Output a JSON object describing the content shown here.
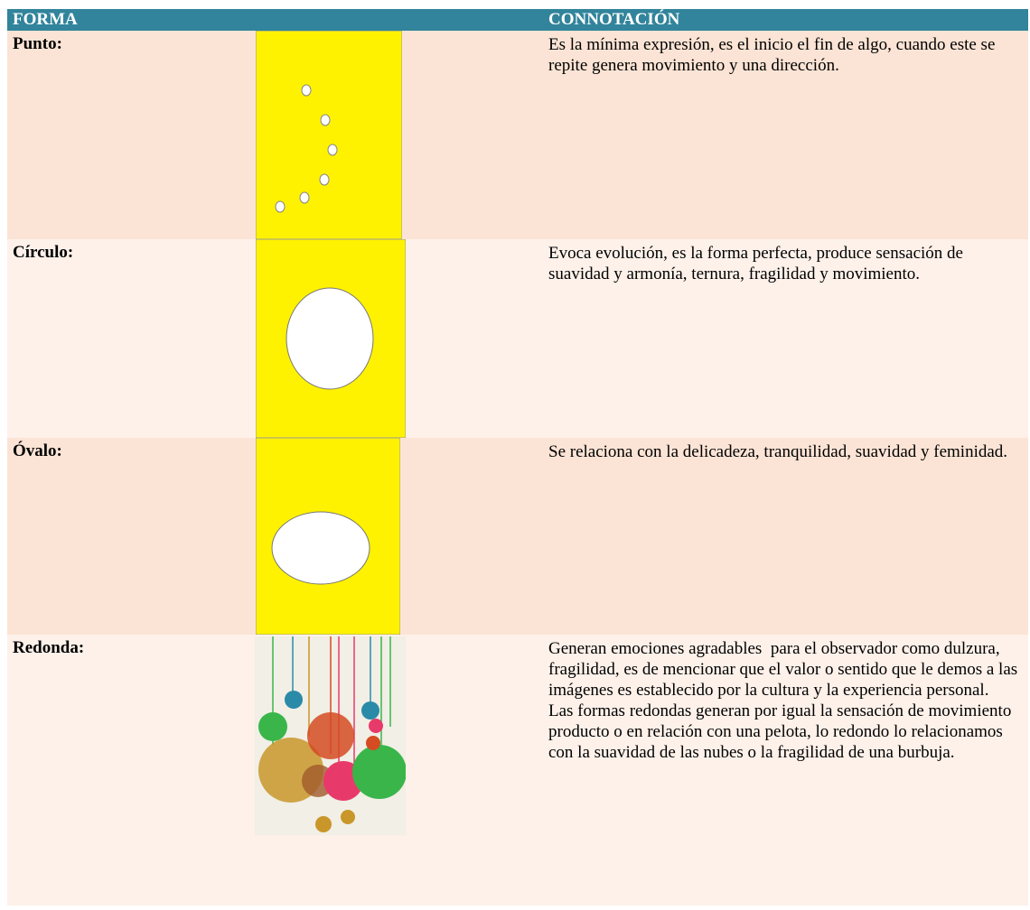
{
  "table": {
    "header": [
      "FORMA",
      "CONNOTACIÓN"
    ],
    "rows": [
      {
        "label": "Punto:",
        "description": [
          "Es la mínima expresión, es el inicio el fin de algo, cuando este se repite genera movimiento y una dirección."
        ]
      },
      {
        "label": "Círculo:",
        "description": [
          "Evoca evolución, es la forma perfecta, produce sensación de suavidad y armonía, ternura, fragilidad y movimiento."
        ]
      },
      {
        "label": "Óvalo:",
        "description": [
          "Se relaciona con la delicadeza, tranquilidad, suavidad y feminidad."
        ]
      },
      {
        "label": "Redonda:",
        "description": [
          "Generan emociones agradables  para el observador como dulzura, fragilidad, es de mencionar que el valor o sentido que le demos a las imágenes es establecido por la cultura y la experiencia personal.",
          "Las formas redondas generan por igual la sensación de movimiento producto o en relación con una pelota, lo redondo lo relacionamos con la suavidad de las nubes o la fragilidad de una burbuja."
        ]
      }
    ]
  }
}
